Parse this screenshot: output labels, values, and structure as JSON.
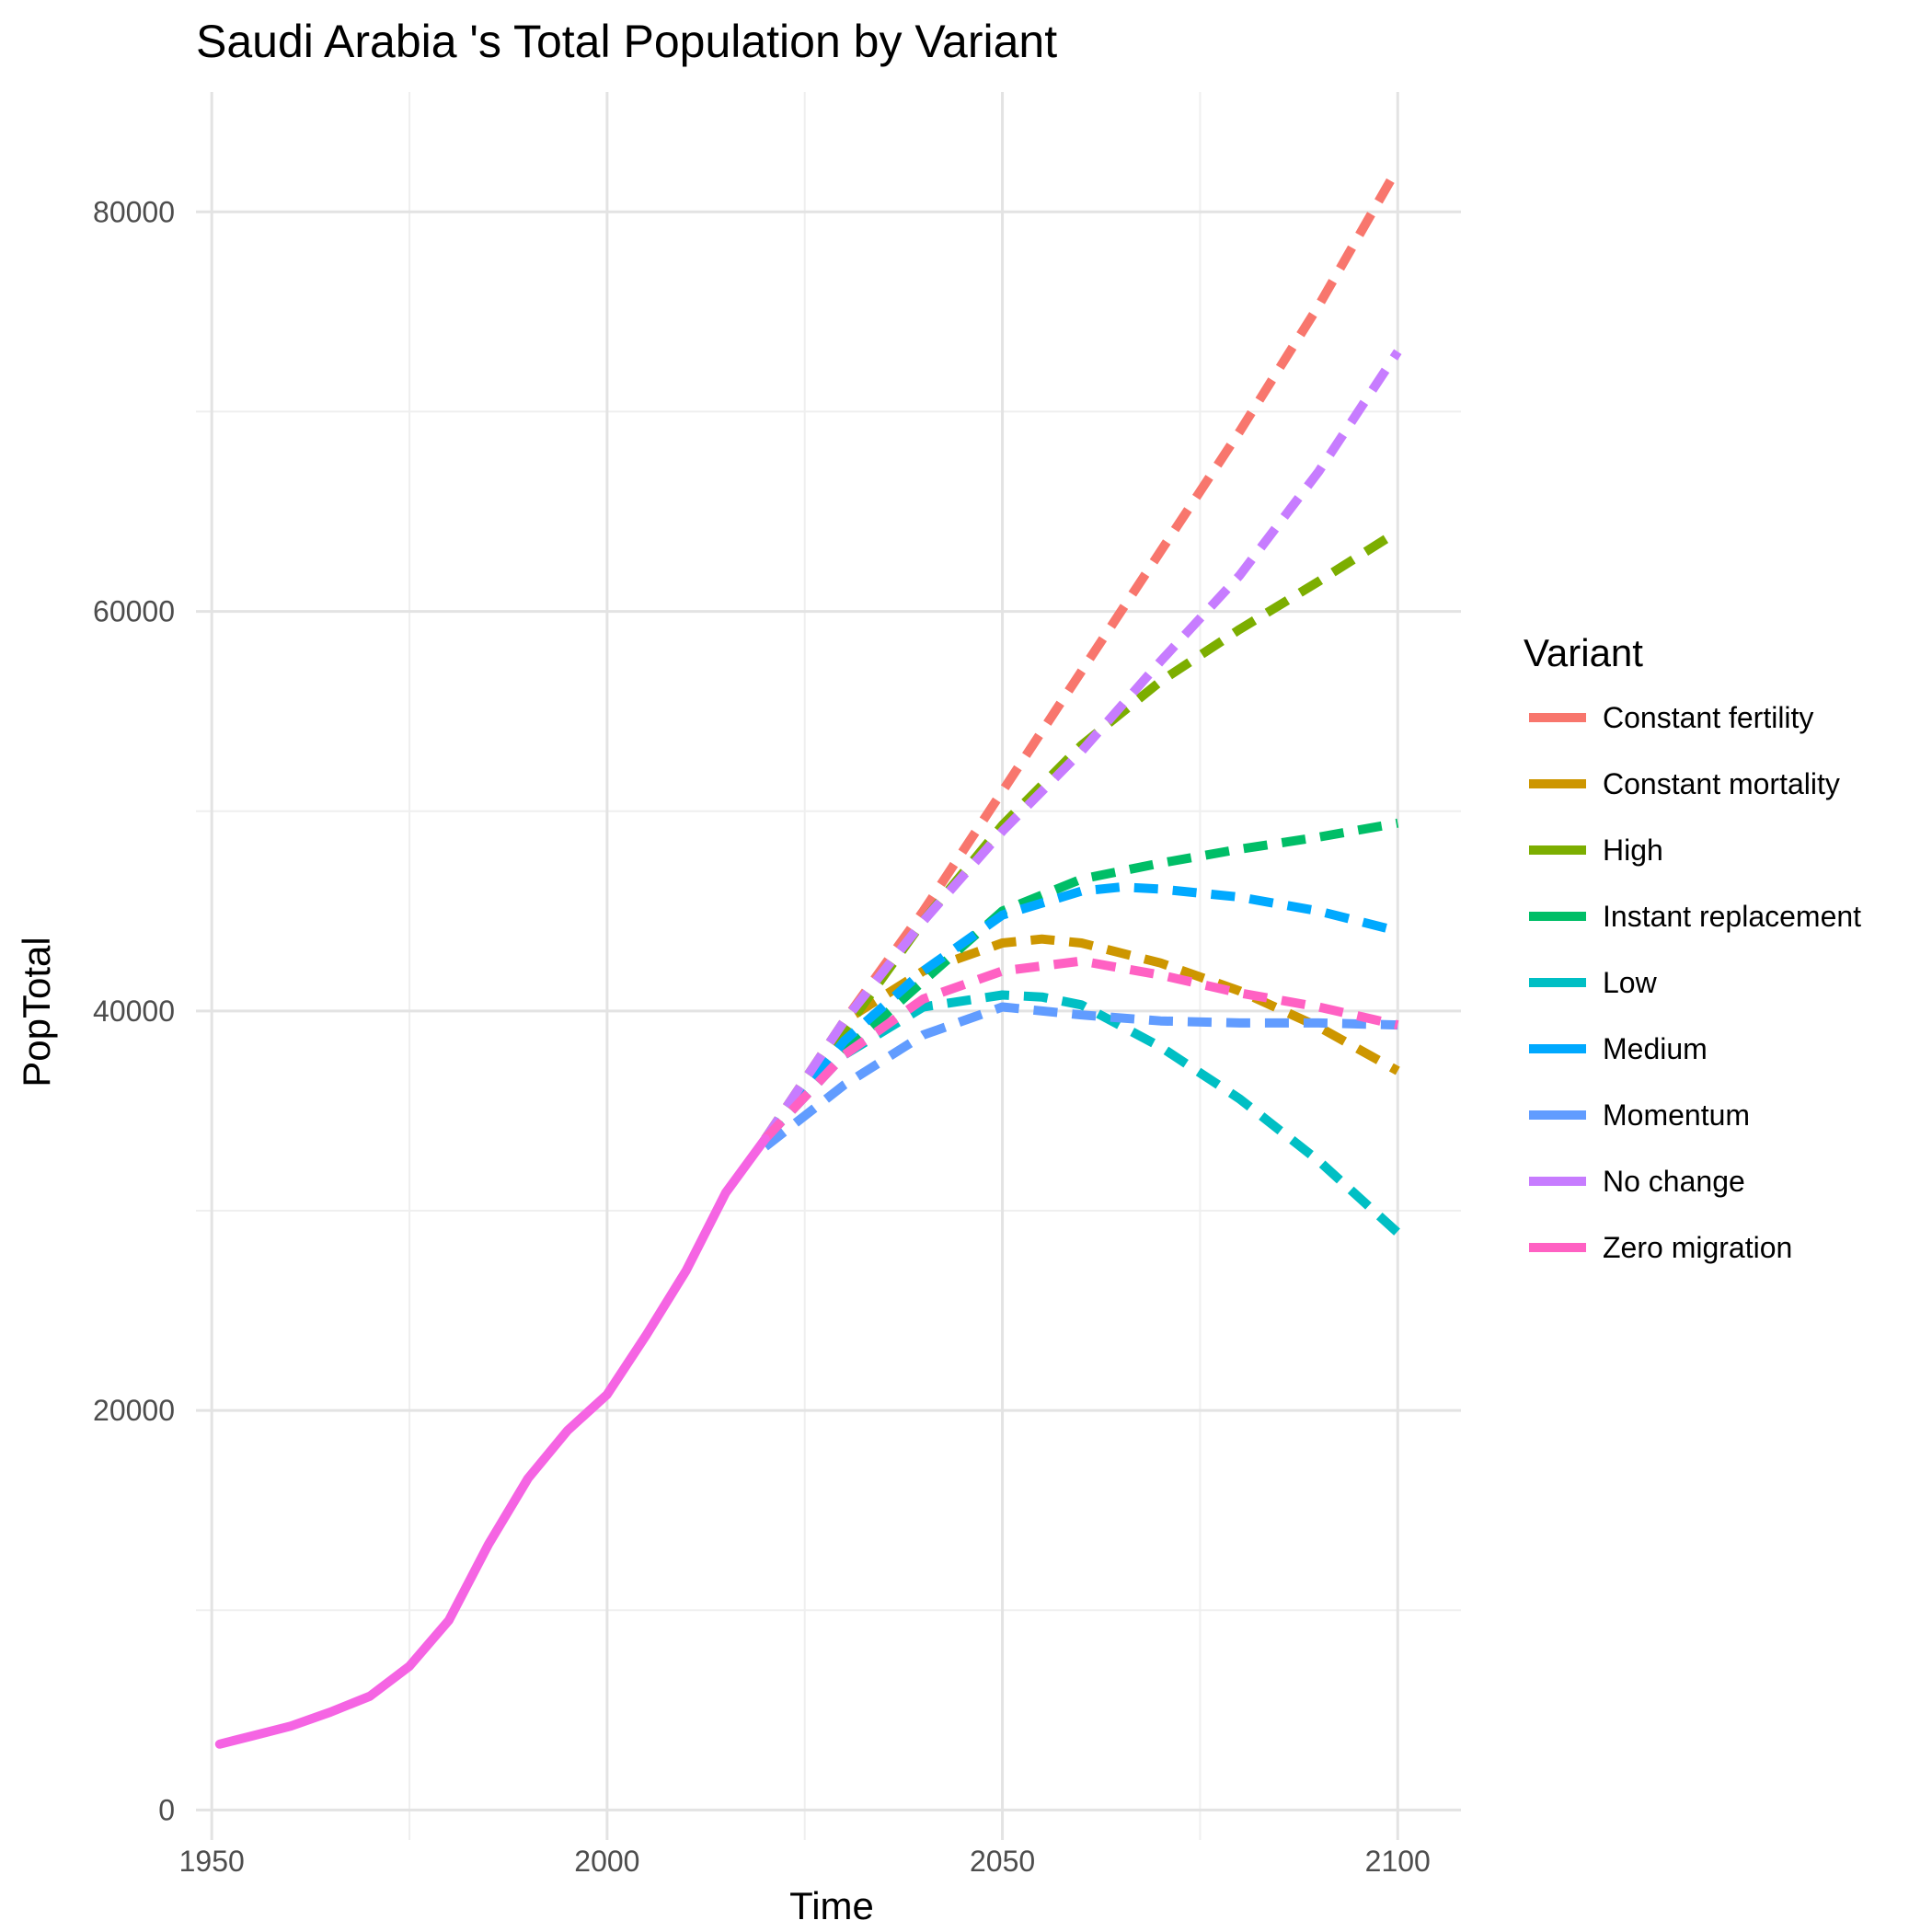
{
  "chart_data": {
    "type": "line",
    "title": "Saudi Arabia 's Total Population by Variant",
    "xlabel": "Time",
    "ylabel": "PopTotal",
    "xlim": [
      1948,
      2108
    ],
    "ylim": [
      -1500,
      86000
    ],
    "x_ticks": [
      1950,
      2000,
      2050,
      2100
    ],
    "y_ticks": [
      0,
      20000,
      40000,
      60000,
      80000
    ],
    "x_ticks_minor": [
      1975,
      2025,
      2075
    ],
    "y_ticks_minor": [
      10000,
      30000,
      50000,
      70000
    ],
    "grid": true,
    "legend": {
      "title": "Variant",
      "position": "right"
    },
    "historical": {
      "color": "#F564E3",
      "x": [
        1951,
        1955,
        1960,
        1965,
        1970,
        1975,
        1980,
        1985,
        1990,
        1995,
        2000,
        2005,
        2010,
        2015,
        2020
      ],
      "y": [
        3300,
        3700,
        4200,
        4900,
        5700,
        7200,
        9500,
        13300,
        16600,
        19000,
        20800,
        23800,
        27000,
        30900,
        33600
      ]
    },
    "series": [
      {
        "name": "Constant fertility",
        "color": "#F8766D",
        "x": [
          2020,
          2030,
          2040,
          2050,
          2060,
          2070,
          2080,
          2090,
          2100
        ],
        "y": [
          33600,
          39500,
          45000,
          51000,
          57000,
          63000,
          69000,
          75300,
          82200
        ]
      },
      {
        "name": "Constant mortality",
        "color": "#CD9600",
        "x": [
          2020,
          2030,
          2040,
          2050,
          2055,
          2060,
          2070,
          2080,
          2090,
          2100
        ],
        "y": [
          33600,
          39500,
          42000,
          43400,
          43600,
          43400,
          42400,
          41000,
          39200,
          37000
        ]
      },
      {
        "name": "High",
        "color": "#7CAE00",
        "x": [
          2020,
          2030,
          2040,
          2050,
          2060,
          2070,
          2080,
          2090,
          2100
        ],
        "y": [
          33600,
          39000,
          44500,
          49300,
          53300,
          56500,
          59100,
          61500,
          64000
        ]
      },
      {
        "name": "Instant replacement",
        "color": "#00BE67",
        "x": [
          2020,
          2030,
          2040,
          2050,
          2060,
          2070,
          2080,
          2090,
          2100
        ],
        "y": [
          33600,
          38000,
          41500,
          45000,
          46600,
          47400,
          48100,
          48700,
          49400
        ]
      },
      {
        "name": "Low",
        "color": "#00BFC4",
        "x": [
          2020,
          2030,
          2040,
          2050,
          2055,
          2060,
          2070,
          2080,
          2090,
          2100
        ],
        "y": [
          33600,
          37800,
          40200,
          40800,
          40700,
          40300,
          38200,
          35600,
          32500,
          28900
        ]
      },
      {
        "name": "Medium",
        "color": "#00A9FF",
        "x": [
          2020,
          2030,
          2040,
          2050,
          2060,
          2065,
          2070,
          2080,
          2090,
          2100
        ],
        "y": [
          33600,
          38500,
          42000,
          44800,
          46000,
          46200,
          46100,
          45700,
          45000,
          44000
        ]
      },
      {
        "name": "Momentum",
        "color": "#619CFF",
        "x": [
          2020,
          2030,
          2040,
          2050,
          2060,
          2070,
          2080,
          2090,
          2100
        ],
        "y": [
          33200,
          36300,
          38800,
          40200,
          39800,
          39500,
          39400,
          39400,
          39300
        ]
      },
      {
        "name": "No change",
        "color": "#C77CFF",
        "x": [
          2020,
          2030,
          2040,
          2050,
          2060,
          2070,
          2080,
          2090,
          2100
        ],
        "y": [
          33600,
          39500,
          44500,
          49000,
          53000,
          57500,
          61800,
          67000,
          73000
        ]
      },
      {
        "name": "Zero migration",
        "color": "#FF61C3",
        "x": [
          2020,
          2030,
          2040,
          2050,
          2060,
          2070,
          2080,
          2090,
          2100
        ],
        "y": [
          33600,
          37800,
          40600,
          42000,
          42500,
          41800,
          40900,
          40200,
          39300
        ]
      }
    ]
  }
}
